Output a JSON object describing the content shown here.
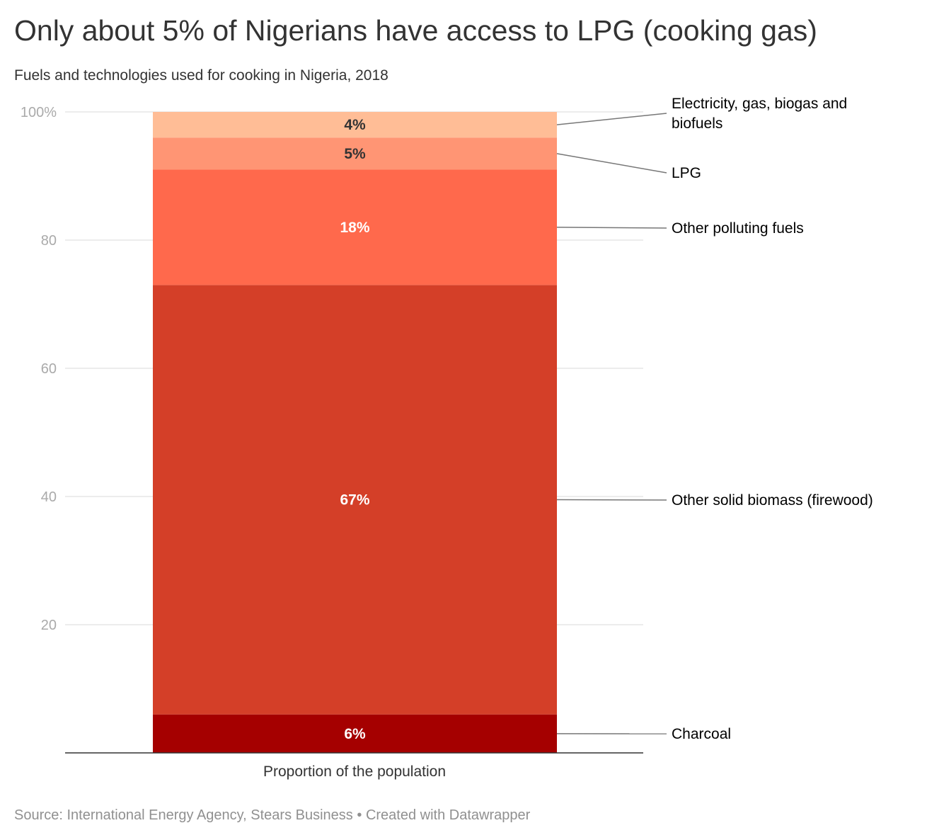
{
  "title": "Only about 5% of Nigerians have access to LPG (cooking gas)",
  "subtitle": "Fuels and technologies used for cooking in Nigeria, 2018",
  "footer": {
    "source": "Source: International Energy Agency, Stears Business",
    "separator": "•",
    "credit": "Created with Datawrapper"
  },
  "chart_data": {
    "type": "bar",
    "stacked": true,
    "categories": [
      "Proportion of the population"
    ],
    "ylim": [
      0,
      100
    ],
    "yticks": [
      {
        "value": 20,
        "label": "20"
      },
      {
        "value": 40,
        "label": "40"
      },
      {
        "value": 60,
        "label": "60"
      },
      {
        "value": 80,
        "label": "80"
      },
      {
        "value": 100,
        "label": "100%"
      }
    ],
    "grid": true,
    "legend": "right, labels connected by leader lines",
    "series": [
      {
        "name": "Charcoal",
        "values": [
          6
        ],
        "label": "6%",
        "color": "#a50000",
        "label_color": "#ffffff"
      },
      {
        "name": "Other solid biomass (firewood)",
        "values": [
          67
        ],
        "label": "67%",
        "color": "#d43f28",
        "label_color": "#ffffff"
      },
      {
        "name": "Other polluting fuels",
        "values": [
          18
        ],
        "label": "18%",
        "color": "#ff694c",
        "label_color": "#ffffff"
      },
      {
        "name": "LPG",
        "values": [
          5
        ],
        "label": "5%",
        "color": "#ff9574",
        "label_color": "#333333"
      },
      {
        "name": "Electricity, gas, biogas and biofuels",
        "values": [
          4
        ],
        "label": "4%",
        "color": "#ffbd96",
        "label_color": "#333333"
      }
    ]
  }
}
